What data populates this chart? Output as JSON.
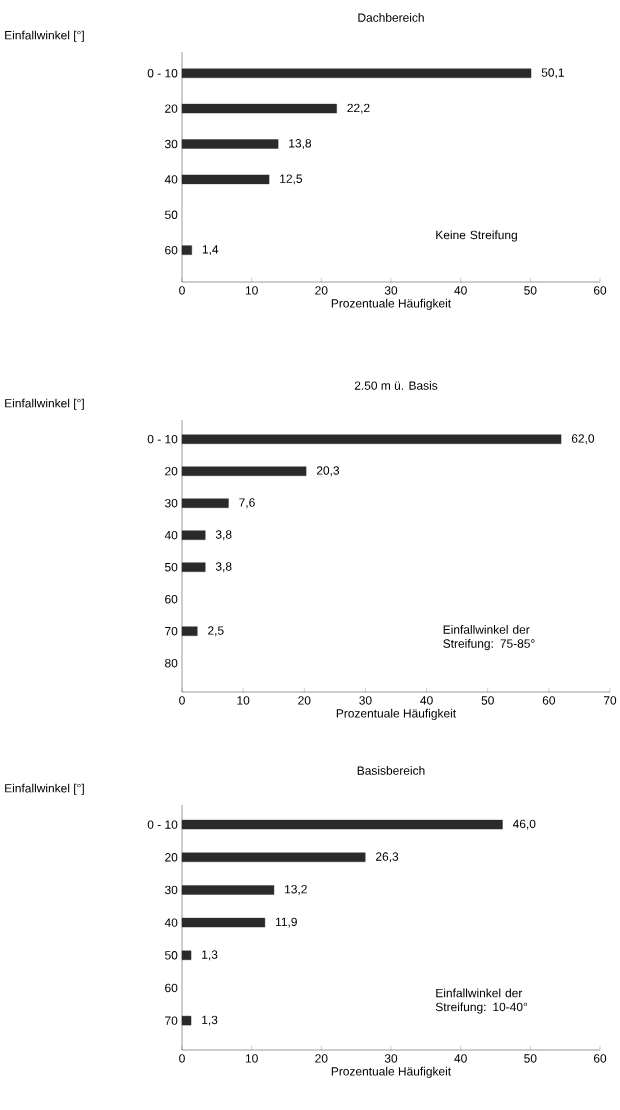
{
  "chart_data": [
    {
      "type": "bar",
      "orientation": "horizontal",
      "title": "Dachbereich",
      "ylabel": "Einfallwinkel [°]",
      "xlabel": "Prozentuale Häufigkeit",
      "categories": [
        "0 - 10",
        "20",
        "30",
        "40",
        "50",
        "60"
      ],
      "values": [
        50.1,
        22.2,
        13.8,
        12.5,
        null,
        1.4
      ],
      "value_labels": [
        "50,1",
        "22,2",
        "13,8",
        "12,5",
        null,
        "1,4"
      ],
      "color": "#2a2a2a",
      "xlim": [
        0,
        60
      ],
      "xticks": [
        0,
        10,
        20,
        30,
        40,
        50,
        60
      ],
      "annotations": [
        "Keine Streifung"
      ]
    },
    {
      "type": "bar",
      "orientation": "horizontal",
      "title": "2.50 m ü. Basis",
      "ylabel": "Einfallwinkel [°]",
      "xlabel": "Prozentuale Häufigkeit",
      "categories": [
        "0 - 10",
        "20",
        "30",
        "40",
        "50",
        "60",
        "70",
        "80"
      ],
      "values": [
        62.0,
        20.3,
        7.6,
        3.8,
        3.8,
        null,
        2.5,
        null
      ],
      "value_labels": [
        "62,0",
        "20,3",
        "7,6",
        "3,8",
        "3,8",
        null,
        "2,5",
        null
      ],
      "color": "#2a2a2a",
      "xlim": [
        0,
        70
      ],
      "xticks": [
        0,
        10,
        20,
        30,
        40,
        50,
        60,
        70
      ],
      "annotations": [
        "Einfallwinkel der Streifung: 75-85°"
      ]
    },
    {
      "type": "bar",
      "orientation": "horizontal",
      "title": "Basisbereich",
      "ylabel": "Einfallwinkel [°]",
      "xlabel": "Prozentuale Häufigkeit",
      "categories": [
        "0 - 10",
        "20",
        "30",
        "40",
        "50",
        "60",
        "70"
      ],
      "values": [
        46.0,
        26.3,
        13.2,
        11.9,
        1.3,
        null,
        1.3
      ],
      "value_labels": [
        "46,0",
        "26,3",
        "13,2",
        "11,9",
        "1,3",
        null,
        "1,3"
      ],
      "color": "#2a2a2a",
      "xlim": [
        0,
        60
      ],
      "xticks": [
        0,
        10,
        20,
        30,
        40,
        50,
        60
      ],
      "annotations": [
        "Einfallwinkel der Streifung: 10-40°"
      ]
    }
  ]
}
